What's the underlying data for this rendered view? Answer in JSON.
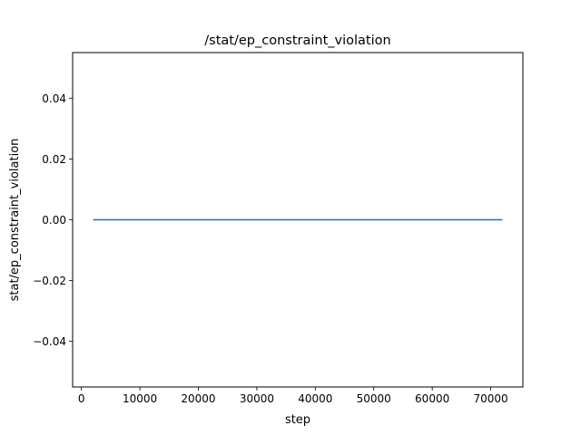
{
  "chart_data": {
    "type": "line",
    "title": "/stat/ep_constraint_violation",
    "xlabel": "step",
    "ylabel": "stat/ep_constraint_violation",
    "xlim": [
      -1500,
      75500
    ],
    "ylim": [
      -0.055,
      0.055
    ],
    "xticks": [
      0,
      10000,
      20000,
      30000,
      40000,
      50000,
      60000,
      70000
    ],
    "xtick_labels": [
      "0",
      "10000",
      "20000",
      "30000",
      "40000",
      "50000",
      "60000",
      "70000"
    ],
    "yticks": [
      -0.04,
      -0.02,
      0.0,
      0.02,
      0.04
    ],
    "ytick_labels": [
      "−0.04",
      "−0.02",
      "0.00",
      "0.02",
      "0.04"
    ],
    "grid": false,
    "series": [
      {
        "color": "#1f77b4",
        "x": [
          2000,
          72000
        ],
        "y": [
          0.0,
          0.0
        ]
      }
    ]
  }
}
